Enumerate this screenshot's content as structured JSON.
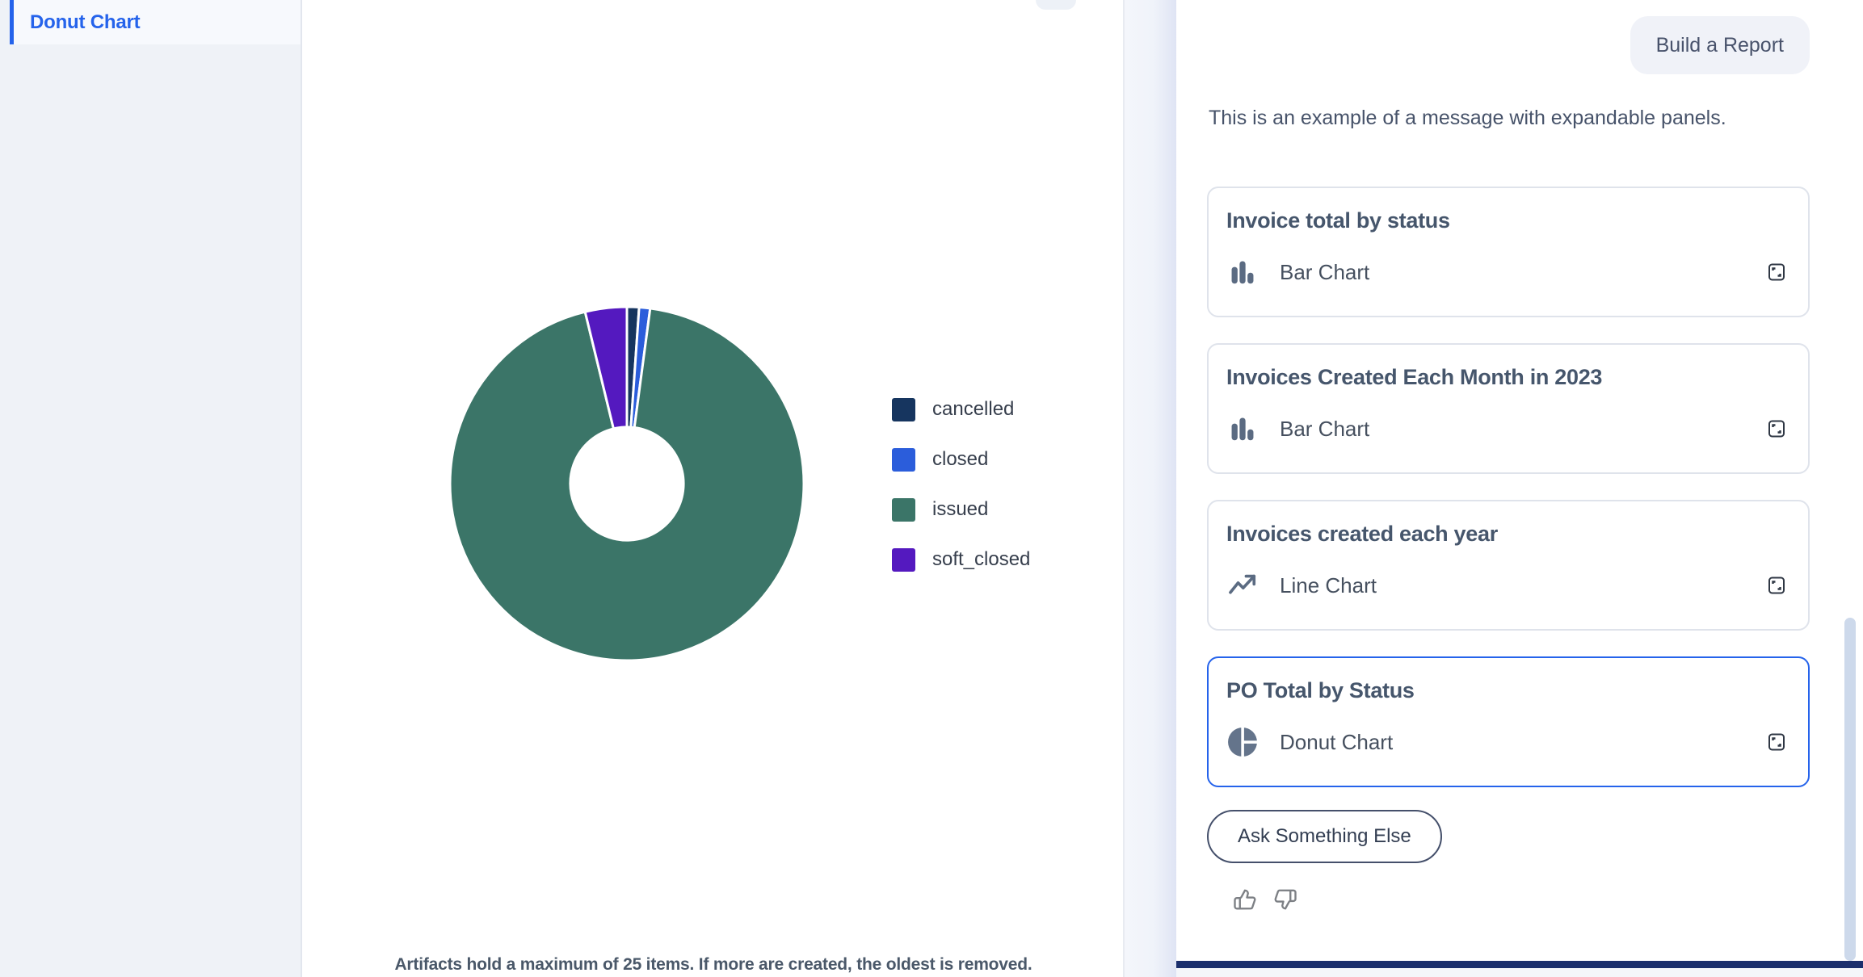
{
  "app": {
    "accent_color": "#2563eb",
    "bottom_bar_color": "#1b2f6d"
  },
  "sidebar": {
    "items": [
      {
        "label": "Donut Chart",
        "active": true
      }
    ]
  },
  "main": {
    "footnote": "Artifacts hold a maximum of 25 items. If more are created, the oldest is removed."
  },
  "chart_data": {
    "type": "pie",
    "donut": true,
    "inner_radius_ratio": 0.32,
    "legend_position": "right",
    "start_at": "top-clockwise",
    "values_unit": "percent (estimated from arc angles, no labels shown)",
    "segments": [
      {
        "label": "cancelled",
        "value": 1.1,
        "color": "#16355f"
      },
      {
        "label": "closed",
        "value": 1.0,
        "color": "#2b5ddb"
      },
      {
        "label": "issued",
        "value": 94.1,
        "color": "#3b7568"
      },
      {
        "label": "soft_closed",
        "value": 3.8,
        "color": "#5419bf"
      }
    ]
  },
  "chat": {
    "user_message": "Build a Report",
    "assistant_message": "This is an example of a message with expandable panels.",
    "panels": [
      {
        "title": "Invoice total by status",
        "type_label": "Bar Chart",
        "icon": "bar-chart-icon",
        "selected": false
      },
      {
        "title": "Invoices Created Each Month in 2023",
        "type_label": "Bar Chart",
        "icon": "bar-chart-icon",
        "selected": false
      },
      {
        "title": "Invoices created each year",
        "type_label": "Line Chart",
        "icon": "line-chart-icon",
        "selected": false
      },
      {
        "title": "PO Total by Status",
        "type_label": "Donut Chart",
        "icon": "donut-chart-icon",
        "selected": true
      }
    ],
    "ask_button_label": "Ask Something Else",
    "feedback_icons": [
      "thumbs-up-icon",
      "thumbs-down-icon"
    ]
  }
}
